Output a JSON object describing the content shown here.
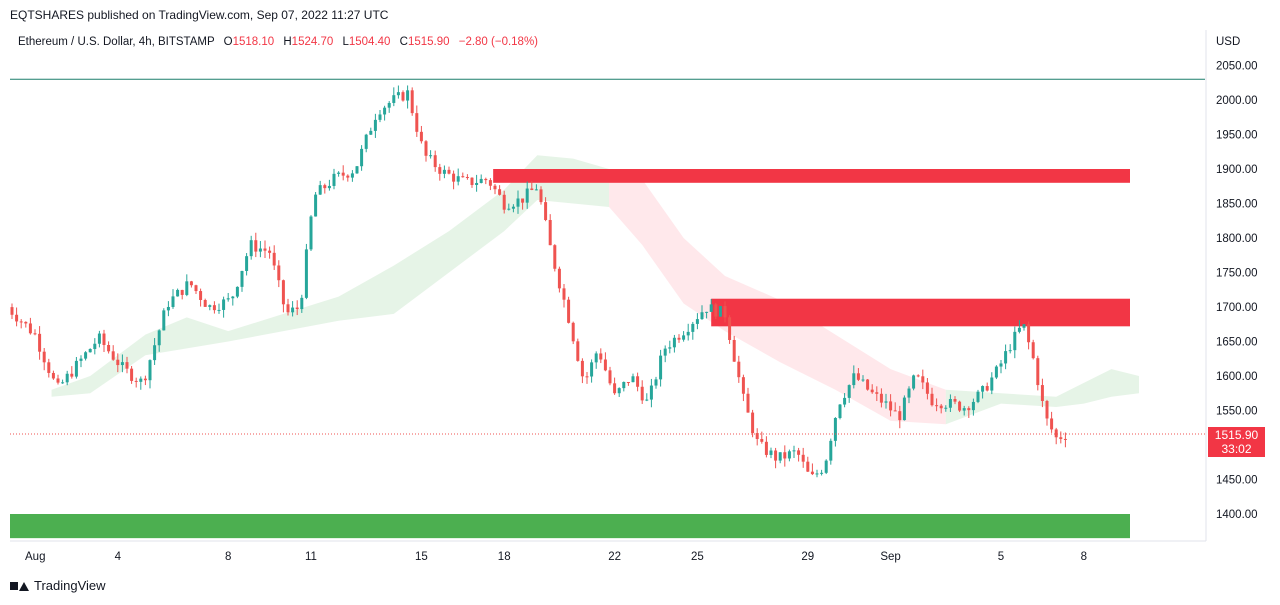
{
  "header": {
    "publisher": "EQTSHARES published on TradingView.com, Sep 07, 2022 11:27 UTC",
    "symbol": "Ethereum / U.S. Dollar, 4h, BITSTAMP",
    "open_label": "O",
    "open": "1518.10",
    "high_label": "H",
    "high": "1524.70",
    "low_label": "L",
    "low": "1504.40",
    "close_label": "C",
    "close": "1515.90",
    "change": "−2.80 (−0.18%)"
  },
  "footer": {
    "brand": "TradingView"
  },
  "colors": {
    "up": "#26a69a",
    "down": "#ef5350",
    "zone_red": "#f23645",
    "zone_green": "#4caf50"
  },
  "chart_data": {
    "type": "candlestick",
    "currency": "USD",
    "y_ticks": [
      2050,
      2000,
      1950,
      1900,
      1850,
      1800,
      1750,
      1700,
      1650,
      1600,
      1550,
      1500,
      1450,
      1400
    ],
    "ylim": [
      1362,
      2072
    ],
    "x_ticks": [
      {
        "label": "Aug",
        "day": 1
      },
      {
        "label": "4",
        "day": 4
      },
      {
        "label": "8",
        "day": 8
      },
      {
        "label": "11",
        "day": 11
      },
      {
        "label": "15",
        "day": 15
      },
      {
        "label": "18",
        "day": 18
      },
      {
        "label": "22",
        "day": 22
      },
      {
        "label": "25",
        "day": 25
      },
      {
        "label": "29",
        "day": 29
      },
      {
        "label": "Sep",
        "day": 32
      },
      {
        "label": "5",
        "day": 36
      },
      {
        "label": "8",
        "day": 39
      }
    ],
    "last_price": "1515.90",
    "countdown": "33:02",
    "horizontal_line": 2030,
    "zones": [
      {
        "color": "red",
        "from_day": 17.6,
        "to_day": 42,
        "low": 1880,
        "high": 1900
      },
      {
        "color": "red",
        "from_day": 25.5,
        "to_day": 42,
        "low": 1672,
        "high": 1712
      },
      {
        "color": "green",
        "from_day": 0.0,
        "to_day": 42,
        "low": 1365,
        "high": 1400
      }
    ],
    "price_path": [
      [
        0.0,
        1700
      ],
      [
        1.0,
        1660
      ],
      [
        1.8,
        1580
      ],
      [
        2.5,
        1615
      ],
      [
        3.3,
        1655
      ],
      [
        4.2,
        1610
      ],
      [
        4.9,
        1590
      ],
      [
        5.8,
        1705
      ],
      [
        6.6,
        1735
      ],
      [
        7.3,
        1700
      ],
      [
        8.1,
        1710
      ],
      [
        8.8,
        1790
      ],
      [
        9.5,
        1780
      ],
      [
        10.1,
        1690
      ],
      [
        10.6,
        1700
      ],
      [
        11.1,
        1860
      ],
      [
        11.8,
        1885
      ],
      [
        12.6,
        1900
      ],
      [
        13.4,
        1985
      ],
      [
        14.0,
        2000
      ],
      [
        14.5,
        2010
      ],
      [
        15.1,
        1920
      ],
      [
        15.8,
        1895
      ],
      [
        16.6,
        1880
      ],
      [
        17.4,
        1885
      ],
      [
        18.0,
        1850
      ],
      [
        18.6,
        1855
      ],
      [
        19.2,
        1875
      ],
      [
        19.7,
        1780
      ],
      [
        20.3,
        1690
      ],
      [
        20.9,
        1590
      ],
      [
        21.4,
        1640
      ],
      [
        22.0,
        1570
      ],
      [
        22.6,
        1600
      ],
      [
        23.2,
        1560
      ],
      [
        23.8,
        1640
      ],
      [
        24.6,
        1670
      ],
      [
        25.3,
        1700
      ],
      [
        26.0,
        1690
      ],
      [
        26.7,
        1560
      ],
      [
        27.2,
        1500
      ],
      [
        27.9,
        1480
      ],
      [
        28.6,
        1490
      ],
      [
        29.1,
        1450
      ],
      [
        29.6,
        1470
      ],
      [
        30.1,
        1560
      ],
      [
        30.7,
        1600
      ],
      [
        31.3,
        1575
      ],
      [
        31.8,
        1560
      ],
      [
        32.3,
        1540
      ],
      [
        32.9,
        1600
      ],
      [
        33.5,
        1565
      ],
      [
        34.1,
        1560
      ],
      [
        34.7,
        1555
      ],
      [
        35.3,
        1575
      ],
      [
        35.9,
        1610
      ],
      [
        36.4,
        1650
      ],
      [
        36.8,
        1675
      ],
      [
        37.2,
        1620
      ],
      [
        37.6,
        1540
      ],
      [
        38.0,
        1510
      ],
      [
        38.4,
        1516
      ]
    ],
    "cloud": {
      "upper": [
        [
          1.6,
          1580
        ],
        [
          3.0,
          1600
        ],
        [
          5.0,
          1660
        ],
        [
          6.5,
          1685
        ],
        [
          8.0,
          1665
        ],
        [
          10.0,
          1690
        ],
        [
          12.0,
          1715
        ],
        [
          14.0,
          1760
        ],
        [
          16.0,
          1810
        ],
        [
          18.0,
          1870
        ],
        [
          19.2,
          1920
        ],
        [
          20.5,
          1915
        ],
        [
          21.8,
          1900
        ],
        [
          23.0,
          1885
        ],
        [
          24.5,
          1800
        ],
        [
          26.0,
          1745
        ],
        [
          28.0,
          1710
        ],
        [
          30.0,
          1660
        ],
        [
          32.0,
          1610
        ],
        [
          34.0,
          1580
        ],
        [
          36.0,
          1575
        ],
        [
          38.0,
          1570
        ],
        [
          39.0,
          1590
        ],
        [
          40.0,
          1610
        ],
        [
          41.0,
          1600
        ]
      ],
      "lower": [
        [
          1.6,
          1570
        ],
        [
          3.0,
          1575
        ],
        [
          5.0,
          1630
        ],
        [
          6.5,
          1640
        ],
        [
          8.0,
          1650
        ],
        [
          10.0,
          1665
        ],
        [
          12.0,
          1680
        ],
        [
          14.0,
          1690
        ],
        [
          16.0,
          1750
        ],
        [
          18.0,
          1810
        ],
        [
          19.2,
          1855
        ],
        [
          20.5,
          1850
        ],
        [
          21.8,
          1845
        ],
        [
          23.0,
          1790
        ],
        [
          24.5,
          1705
        ],
        [
          26.0,
          1665
        ],
        [
          28.0,
          1620
        ],
        [
          30.0,
          1580
        ],
        [
          32.0,
          1535
        ],
        [
          34.0,
          1530
        ],
        [
          36.0,
          1560
        ],
        [
          38.0,
          1555
        ],
        [
          39.0,
          1560
        ],
        [
          40.0,
          1570
        ],
        [
          41.0,
          1575
        ]
      ]
    }
  }
}
